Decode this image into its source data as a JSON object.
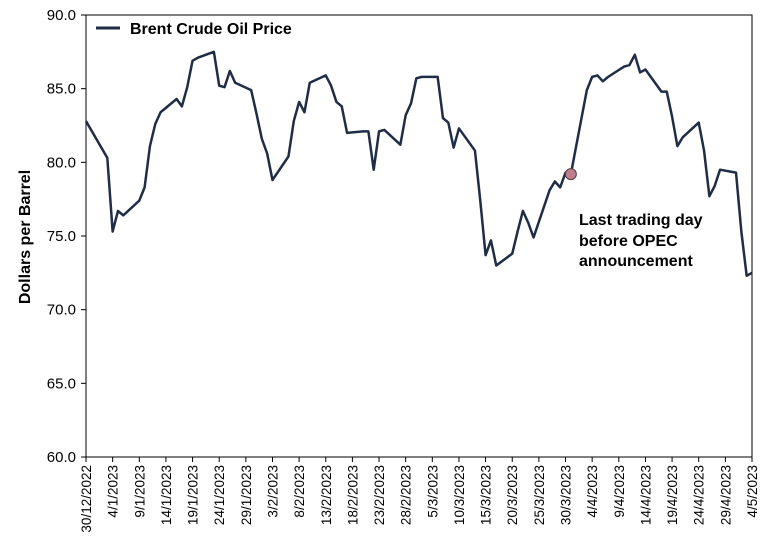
{
  "chart_data": {
    "type": "line",
    "title": "",
    "xlabel": "",
    "ylabel": "Dollars per Barrel",
    "ylim": [
      60.0,
      90.0
    ],
    "yticks": [
      "60.0",
      "65.0",
      "70.0",
      "75.0",
      "80.0",
      "85.0",
      "90.0"
    ],
    "xticks": [
      "30/12/2022",
      "4/1/2023",
      "9/1/2023",
      "14/1/2023",
      "19/1/2023",
      "24/1/2023",
      "29/1/2023",
      "3/2/2023",
      "8/2/2023",
      "13/2/2023",
      "18/2/2023",
      "23/2/2023",
      "28/2/2023",
      "5/3/2023",
      "10/3/2023",
      "15/3/2023",
      "20/3/2023",
      "25/3/2023",
      "30/3/2023",
      "4/4/2023",
      "9/4/2023",
      "14/4/2023",
      "19/4/2023",
      "24/4/2023",
      "29/4/2023",
      "4/5/2023"
    ],
    "grid": false,
    "legend": "top-left",
    "line_color": "#1f2d46",
    "marker_color": "#c07e8c",
    "series": [
      {
        "name": "Brent Crude Oil Price",
        "points": [
          [
            "30/12/2022",
            82.8
          ],
          [
            "3/1/2023",
            80.3
          ],
          [
            "4/1/2023",
            75.3
          ],
          [
            "5/1/2023",
            76.7
          ],
          [
            "6/1/2023",
            76.4
          ],
          [
            "9/1/2023",
            77.4
          ],
          [
            "10/1/2023",
            78.3
          ],
          [
            "11/1/2023",
            81.1
          ],
          [
            "12/1/2023",
            82.6
          ],
          [
            "13/1/2023",
            83.4
          ],
          [
            "16/1/2023",
            84.3
          ],
          [
            "17/1/2023",
            83.8
          ],
          [
            "18/1/2023",
            85.1
          ],
          [
            "19/1/2023",
            86.9
          ],
          [
            "20/1/2023",
            87.1
          ],
          [
            "23/1/2023",
            87.5
          ],
          [
            "24/1/2023",
            85.2
          ],
          [
            "25/1/2023",
            85.1
          ],
          [
            "26/1/2023",
            86.2
          ],
          [
            "27/1/2023",
            85.4
          ],
          [
            "30/1/2023",
            84.9
          ],
          [
            "31/1/2023",
            83.3
          ],
          [
            "1/2/2023",
            81.6
          ],
          [
            "2/2/2023",
            80.6
          ],
          [
            "3/2/2023",
            78.8
          ],
          [
            "6/2/2023",
            80.4
          ],
          [
            "7/2/2023",
            82.8
          ],
          [
            "8/2/2023",
            84.1
          ],
          [
            "9/2/2023",
            83.4
          ],
          [
            "10/2/2023",
            85.4
          ],
          [
            "13/2/2023",
            85.9
          ],
          [
            "14/2/2023",
            85.2
          ],
          [
            "15/2/2023",
            84.1
          ],
          [
            "16/2/2023",
            83.8
          ],
          [
            "17/2/2023",
            82.0
          ],
          [
            "20/2/2023",
            82.1
          ],
          [
            "21/2/2023",
            82.1
          ],
          [
            "22/2/2023",
            79.5
          ],
          [
            "23/2/2023",
            82.1
          ],
          [
            "24/2/2023",
            82.2
          ],
          [
            "27/2/2023",
            81.2
          ],
          [
            "28/2/2023",
            83.2
          ],
          [
            "1/3/2023",
            84.0
          ],
          [
            "2/3/2023",
            85.7
          ],
          [
            "3/3/2023",
            85.8
          ],
          [
            "6/3/2023",
            85.8
          ],
          [
            "7/3/2023",
            83.0
          ],
          [
            "8/3/2023",
            82.7
          ],
          [
            "9/3/2023",
            81.0
          ],
          [
            "10/3/2023",
            82.3
          ],
          [
            "13/3/2023",
            80.8
          ],
          [
            "14/3/2023",
            77.4
          ],
          [
            "15/3/2023",
            73.7
          ],
          [
            "16/3/2023",
            74.7
          ],
          [
            "17/3/2023",
            73.0
          ],
          [
            "20/3/2023",
            73.8
          ],
          [
            "21/3/2023",
            75.3
          ],
          [
            "22/3/2023",
            76.7
          ],
          [
            "23/3/2023",
            75.9
          ],
          [
            "24/3/2023",
            74.9
          ],
          [
            "27/3/2023",
            78.1
          ],
          [
            "28/3/2023",
            78.7
          ],
          [
            "29/3/2023",
            78.3
          ],
          [
            "30/3/2023",
            79.3
          ],
          [
            "31/3/2023",
            79.2
          ],
          [
            "3/4/2023",
            84.9
          ],
          [
            "4/4/2023",
            85.8
          ],
          [
            "5/4/2023",
            85.9
          ],
          [
            "6/4/2023",
            85.5
          ],
          [
            "7/4/2023",
            85.8
          ],
          [
            "10/4/2023",
            86.5
          ],
          [
            "11/4/2023",
            86.6
          ],
          [
            "12/4/2023",
            87.3
          ],
          [
            "13/4/2023",
            86.1
          ],
          [
            "14/4/2023",
            86.3
          ],
          [
            "17/4/2023",
            84.8
          ],
          [
            "18/4/2023",
            84.8
          ],
          [
            "19/4/2023",
            83.1
          ],
          [
            "20/4/2023",
            81.1
          ],
          [
            "21/4/2023",
            81.7
          ],
          [
            "24/4/2023",
            82.7
          ],
          [
            "25/4/2023",
            80.8
          ],
          [
            "26/4/2023",
            77.7
          ],
          [
            "27/4/2023",
            78.4
          ],
          [
            "28/4/2023",
            79.5
          ],
          [
            "1/5/2023",
            79.3
          ],
          [
            "2/5/2023",
            75.3
          ],
          [
            "3/5/2023",
            72.3
          ],
          [
            "4/5/2023",
            72.5
          ]
        ]
      }
    ],
    "annotations": [
      {
        "date": "31/3/2023",
        "value": 79.2,
        "lines": [
          "Last trading day",
          "before OPEC",
          "announcement"
        ]
      }
    ]
  }
}
